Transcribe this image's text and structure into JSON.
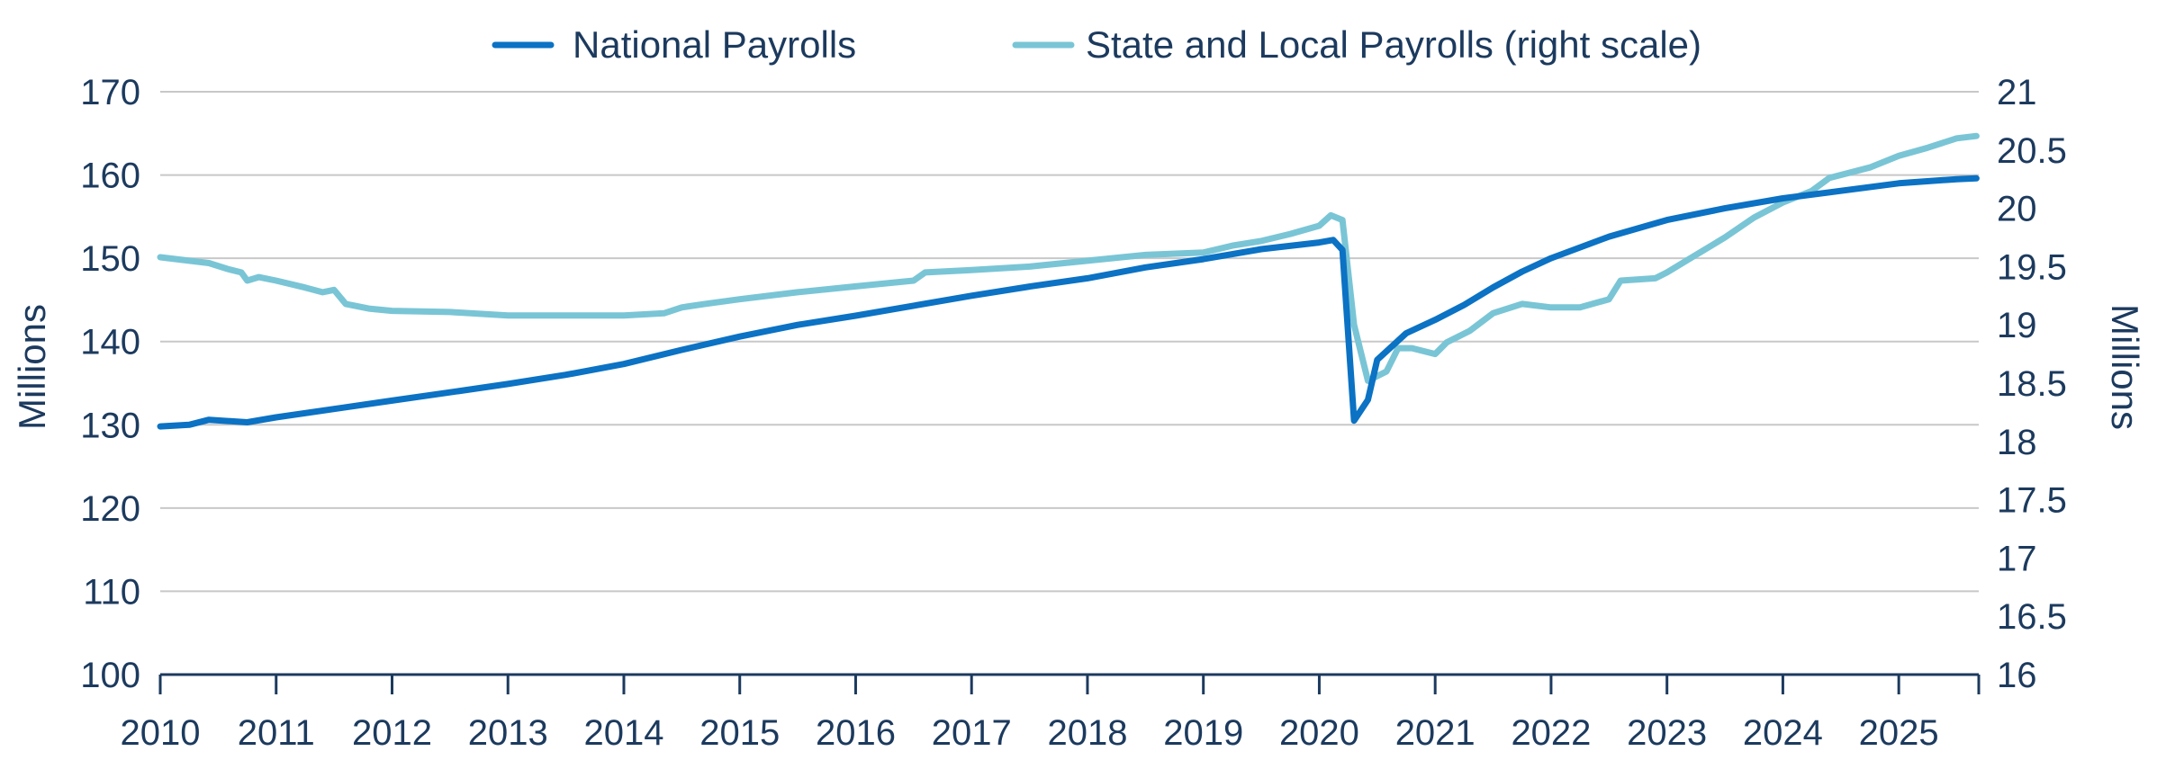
{
  "chart_data": {
    "type": "line",
    "title": "",
    "xlabel": "",
    "ylabel": "Millions",
    "ylabel_right": "Millions",
    "xlim": [
      2010,
      2025.67
    ],
    "ylim": [
      100,
      170
    ],
    "ylim_right": [
      16,
      21
    ],
    "x_ticks": [
      "2010",
      "2011",
      "2012",
      "2013",
      "2014",
      "2015",
      "2016",
      "2017",
      "2018",
      "2019",
      "2020",
      "2021",
      "2022",
      "2023",
      "2024",
      "2025"
    ],
    "y_ticks": [
      "100",
      "110",
      "120",
      "130",
      "140",
      "150",
      "160",
      "170"
    ],
    "y_ticks_right": [
      "16",
      "16.5",
      "17",
      "17.5",
      "18",
      "18.5",
      "19",
      "19.5",
      "20",
      "20.5",
      "21"
    ],
    "grid": true,
    "legend_position": "top-center",
    "series": [
      {
        "name": "National Payrolls",
        "axis": "left",
        "color": "#0b72c4",
        "points": [
          [
            2010.0,
            129.8
          ],
          [
            2010.25,
            130.0
          ],
          [
            2010.42,
            130.6
          ],
          [
            2010.75,
            130.3
          ],
          [
            2011.0,
            130.9
          ],
          [
            2011.5,
            131.9
          ],
          [
            2012.0,
            132.9
          ],
          [
            2012.5,
            133.9
          ],
          [
            2013.0,
            134.9
          ],
          [
            2013.5,
            136.0
          ],
          [
            2014.0,
            137.3
          ],
          [
            2014.5,
            139.0
          ],
          [
            2015.0,
            140.6
          ],
          [
            2015.5,
            142.0
          ],
          [
            2016.0,
            143.1
          ],
          [
            2016.5,
            144.3
          ],
          [
            2017.0,
            145.5
          ],
          [
            2017.5,
            146.6
          ],
          [
            2018.0,
            147.6
          ],
          [
            2018.5,
            148.9
          ],
          [
            2019.0,
            149.9
          ],
          [
            2019.5,
            151.1
          ],
          [
            2020.0,
            151.9
          ],
          [
            2020.12,
            152.2
          ],
          [
            2020.2,
            151.0
          ],
          [
            2020.3,
            130.5
          ],
          [
            2020.42,
            133.0
          ],
          [
            2020.5,
            137.8
          ],
          [
            2020.75,
            141.0
          ],
          [
            2021.0,
            142.6
          ],
          [
            2021.25,
            144.4
          ],
          [
            2021.5,
            146.5
          ],
          [
            2021.75,
            148.4
          ],
          [
            2022.0,
            150.0
          ],
          [
            2022.5,
            152.6
          ],
          [
            2023.0,
            154.6
          ],
          [
            2023.5,
            156.0
          ],
          [
            2024.0,
            157.2
          ],
          [
            2024.5,
            158.1
          ],
          [
            2025.0,
            159.0
          ],
          [
            2025.5,
            159.5
          ],
          [
            2025.67,
            159.6
          ]
        ]
      },
      {
        "name": "State and Local Payrolls (right scale)",
        "axis": "right",
        "color": "#79c5d6",
        "points": [
          [
            2010.0,
            19.58
          ],
          [
            2010.25,
            19.55
          ],
          [
            2010.42,
            19.53
          ],
          [
            2010.58,
            19.48
          ],
          [
            2010.7,
            19.45
          ],
          [
            2010.75,
            19.38
          ],
          [
            2010.85,
            19.41
          ],
          [
            2011.0,
            19.38
          ],
          [
            2011.25,
            19.32
          ],
          [
            2011.4,
            19.28
          ],
          [
            2011.5,
            19.3
          ],
          [
            2011.6,
            19.18
          ],
          [
            2011.8,
            19.14
          ],
          [
            2012.0,
            19.12
          ],
          [
            2012.5,
            19.11
          ],
          [
            2013.0,
            19.08
          ],
          [
            2013.5,
            19.08
          ],
          [
            2014.0,
            19.08
          ],
          [
            2014.35,
            19.1
          ],
          [
            2014.5,
            19.15
          ],
          [
            2014.7,
            19.18
          ],
          [
            2015.0,
            19.22
          ],
          [
            2015.5,
            19.28
          ],
          [
            2016.0,
            19.33
          ],
          [
            2016.5,
            19.38
          ],
          [
            2016.6,
            19.45
          ],
          [
            2017.0,
            19.47
          ],
          [
            2017.5,
            19.5
          ],
          [
            2018.0,
            19.55
          ],
          [
            2018.5,
            19.6
          ],
          [
            2019.0,
            19.62
          ],
          [
            2019.25,
            19.68
          ],
          [
            2019.5,
            19.72
          ],
          [
            2019.75,
            19.78
          ],
          [
            2020.0,
            19.85
          ],
          [
            2020.1,
            19.94
          ],
          [
            2020.2,
            19.9
          ],
          [
            2020.3,
            19.0
          ],
          [
            2020.42,
            18.52
          ],
          [
            2020.58,
            18.6
          ],
          [
            2020.68,
            18.8
          ],
          [
            2020.8,
            18.8
          ],
          [
            2021.0,
            18.75
          ],
          [
            2021.1,
            18.85
          ],
          [
            2021.3,
            18.95
          ],
          [
            2021.5,
            19.1
          ],
          [
            2021.75,
            19.18
          ],
          [
            2022.0,
            19.15
          ],
          [
            2022.25,
            19.15
          ],
          [
            2022.5,
            19.22
          ],
          [
            2022.6,
            19.38
          ],
          [
            2022.9,
            19.4
          ],
          [
            2023.0,
            19.45
          ],
          [
            2023.25,
            19.6
          ],
          [
            2023.5,
            19.75
          ],
          [
            2023.75,
            19.92
          ],
          [
            2024.0,
            20.05
          ],
          [
            2024.25,
            20.15
          ],
          [
            2024.4,
            20.26
          ],
          [
            2024.75,
            20.35
          ],
          [
            2025.0,
            20.45
          ],
          [
            2025.25,
            20.52
          ],
          [
            2025.5,
            20.6
          ],
          [
            2025.67,
            20.62
          ]
        ]
      }
    ]
  }
}
